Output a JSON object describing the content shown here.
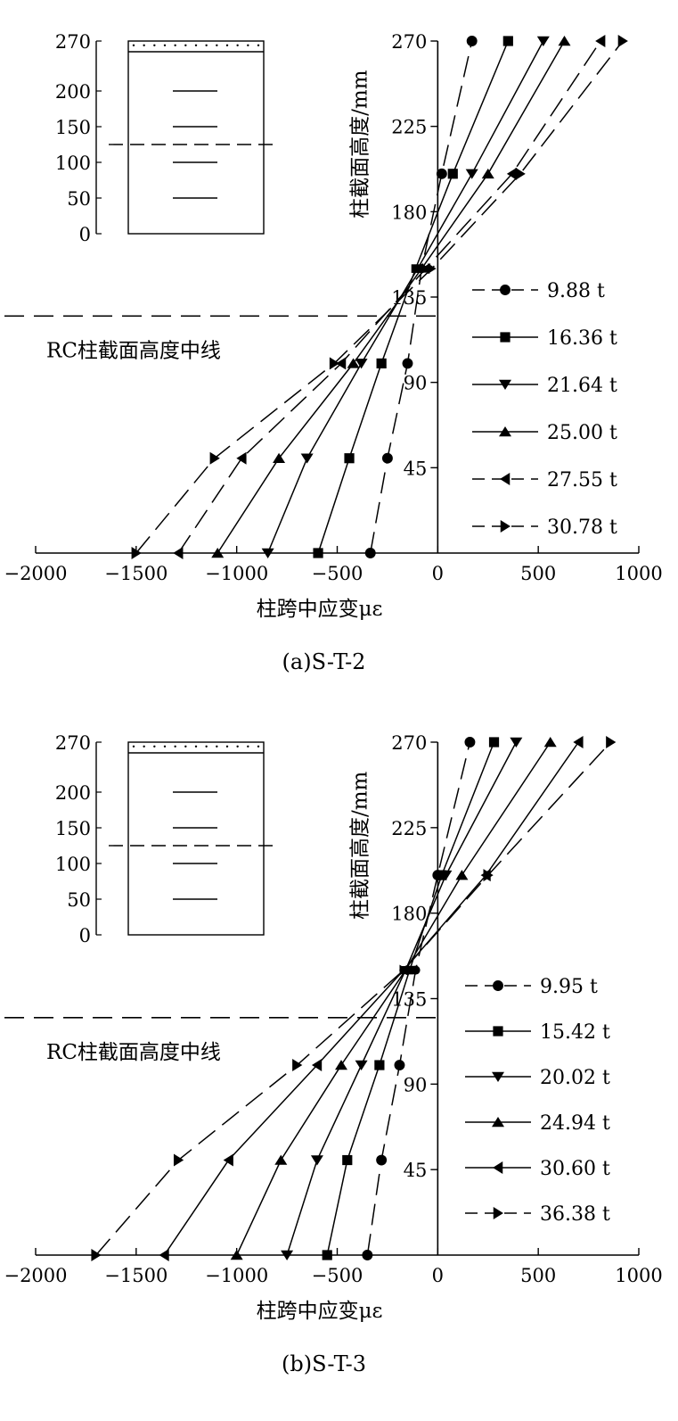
{
  "chart_data": [
    {
      "type": "line",
      "caption": "(a)S-T-2",
      "xlabel": "柱跨中应变με",
      "ylabel": "柱截面高度/mm",
      "xlim": [
        -2000,
        1000
      ],
      "ylim": [
        0,
        270
      ],
      "xticks": [
        -2000,
        -1500,
        -1000,
        -500,
        0,
        500,
        1000
      ],
      "yticks": [
        45,
        90,
        135,
        180,
        225,
        270
      ],
      "midline_label": "RC柱截面高度中线",
      "midline_y": 125,
      "inset": {
        "yticks": [
          0,
          50,
          100,
          150,
          200,
          270
        ],
        "gauge_heights": [
          50,
          100,
          150,
          200
        ],
        "midline": 125
      },
      "legend_position": "right",
      "series": [
        {
          "name": "9.88 t",
          "marker": "circle",
          "dash": "dashed",
          "points": [
            [
              -335,
              0
            ],
            [
              -250,
              50
            ],
            [
              -150,
              100
            ],
            [
              -80,
              150
            ],
            [
              20,
              200
            ],
            [
              170,
              270
            ]
          ]
        },
        {
          "name": "16.36 t",
          "marker": "square",
          "dash": "solid",
          "points": [
            [
              -595,
              0
            ],
            [
              -440,
              50
            ],
            [
              -280,
              100
            ],
            [
              -110,
              150
            ],
            [
              75,
              200
            ],
            [
              350,
              270
            ]
          ]
        },
        {
          "name": "21.64 t",
          "marker": "triangle-down",
          "dash": "solid",
          "points": [
            [
              -845,
              0
            ],
            [
              -650,
              50
            ],
            [
              -380,
              100
            ],
            [
              -100,
              150
            ],
            [
              170,
              200
            ],
            [
              525,
              270
            ]
          ]
        },
        {
          "name": "25.00 t",
          "marker": "triangle-up",
          "dash": "solid",
          "points": [
            [
              -1095,
              0
            ],
            [
              -790,
              50
            ],
            [
              -420,
              100
            ],
            [
              -80,
              150
            ],
            [
              250,
              200
            ],
            [
              630,
              270
            ]
          ]
        },
        {
          "name": "27.55 t",
          "marker": "triangle-left",
          "dash": "dashed",
          "points": [
            [
              -1290,
              0
            ],
            [
              -975,
              50
            ],
            [
              -480,
              100
            ],
            [
              -60,
              150
            ],
            [
              370,
              200
            ],
            [
              810,
              270
            ]
          ]
        },
        {
          "name": "30.78 t",
          "marker": "triangle-right",
          "dash": "dashed",
          "points": [
            [
              -1500,
              0
            ],
            [
              -1110,
              50
            ],
            [
              -515,
              100
            ],
            [
              -30,
              150
            ],
            [
              410,
              200
            ],
            [
              920,
              270
            ]
          ]
        }
      ]
    },
    {
      "type": "line",
      "caption": "(b)S-T-3",
      "xlabel": "柱跨中应变με",
      "ylabel": "柱截面高度/mm",
      "xlim": [
        -2000,
        1000
      ],
      "ylim": [
        0,
        270
      ],
      "xticks": [
        -2000,
        -1500,
        -1000,
        -500,
        0,
        500,
        1000
      ],
      "yticks": [
        45,
        90,
        135,
        180,
        225,
        270
      ],
      "midline_label": "RC柱截面高度中线",
      "midline_y": 125,
      "inset": {
        "yticks": [
          0,
          50,
          100,
          150,
          200,
          270
        ],
        "gauge_heights": [
          50,
          100,
          150,
          200
        ],
        "midline": 125
      },
      "legend_position": "right",
      "series": [
        {
          "name": "9.95 t",
          "marker": "circle",
          "dash": "dashed",
          "points": [
            [
              -350,
              0
            ],
            [
              -280,
              50
            ],
            [
              -190,
              100
            ],
            [
              -110,
              150
            ],
            [
              0,
              200
            ],
            [
              160,
              270
            ]
          ]
        },
        {
          "name": "15.42 t",
          "marker": "square",
          "dash": "solid",
          "points": [
            [
              -550,
              0
            ],
            [
              -450,
              50
            ],
            [
              -290,
              100
            ],
            [
              -140,
              150
            ],
            [
              20,
              200
            ],
            [
              280,
              270
            ]
          ]
        },
        {
          "name": "20.02 t",
          "marker": "triangle-down",
          "dash": "solid",
          "points": [
            [
              -750,
              0
            ],
            [
              -600,
              50
            ],
            [
              -380,
              100
            ],
            [
              -160,
              150
            ],
            [
              40,
              200
            ],
            [
              390,
              270
            ]
          ]
        },
        {
          "name": "24.94 t",
          "marker": "triangle-up",
          "dash": "solid",
          "points": [
            [
              -1000,
              0
            ],
            [
              -780,
              50
            ],
            [
              -480,
              100
            ],
            [
              -160,
              150
            ],
            [
              120,
              200
            ],
            [
              560,
              270
            ]
          ]
        },
        {
          "name": "30.60 t",
          "marker": "triangle-left",
          "dash": "solid",
          "points": [
            [
              -1360,
              0
            ],
            [
              -1040,
              50
            ],
            [
              -600,
              100
            ],
            [
              -170,
              150
            ],
            [
              240,
              200
            ],
            [
              700,
              270
            ]
          ]
        },
        {
          "name": "36.38 t",
          "marker": "triangle-right",
          "dash": "dashed",
          "points": [
            [
              -1700,
              0
            ],
            [
              -1290,
              50
            ],
            [
              -700,
              100
            ],
            [
              -170,
              150
            ],
            [
              250,
              200
            ],
            [
              860,
              270
            ]
          ]
        }
      ]
    }
  ]
}
